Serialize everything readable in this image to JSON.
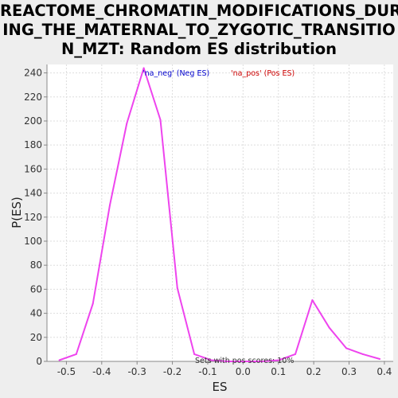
{
  "chart_data": {
    "type": "line",
    "title_lines": [
      "REACTOME_CHROMATIN_MODIFICATIONS_DUR",
      "ING_THE_MATERNAL_TO_ZYGOTIC_TRANSITIO",
      "N_MZT: Random ES distribution"
    ],
    "xlabel": "ES",
    "ylabel": "P(ES)",
    "xlim": [
      -0.555,
      0.425
    ],
    "ylim": [
      0,
      247
    ],
    "x_ticks": [
      -0.5,
      -0.4,
      -0.3,
      -0.2,
      -0.1,
      0.0,
      0.1,
      0.2,
      0.3,
      0.4
    ],
    "x_tick_labels": [
      "-0.5",
      "-0.4",
      "-0.3",
      "-0.2",
      "-0.1",
      "0.0",
      "0.1",
      "0.2",
      "0.3",
      "0.4"
    ],
    "y_ticks": [
      0,
      20,
      40,
      60,
      80,
      100,
      120,
      140,
      160,
      180,
      200,
      220,
      240
    ],
    "y_tick_labels": [
      "0",
      "20",
      "40",
      "60",
      "80",
      "100",
      "120",
      "140",
      "160",
      "180",
      "200",
      "220",
      "240"
    ],
    "grid": true,
    "legend": [
      {
        "label": "'na_neg' (Neg ES)",
        "color": "#0000cc"
      },
      {
        "label": "'na_pos' (Pos ES)",
        "color": "#cc0000"
      }
    ],
    "annotation": "Sets with pos scores: 10%",
    "series": [
      {
        "color": "#ee44ee",
        "x": [
          -0.52,
          -0.472,
          -0.425,
          -0.377,
          -0.329,
          -0.281,
          -0.234,
          -0.186,
          -0.138,
          -0.09,
          -0.043,
          0.005,
          0.053,
          0.101,
          0.148,
          0.196,
          0.244,
          0.292,
          0.339,
          0.387
        ],
        "y": [
          1,
          6,
          48,
          130,
          198,
          244,
          201,
          61,
          6,
          1,
          0,
          0,
          0,
          1,
          6,
          51,
          28,
          11,
          6,
          2
        ]
      }
    ]
  }
}
